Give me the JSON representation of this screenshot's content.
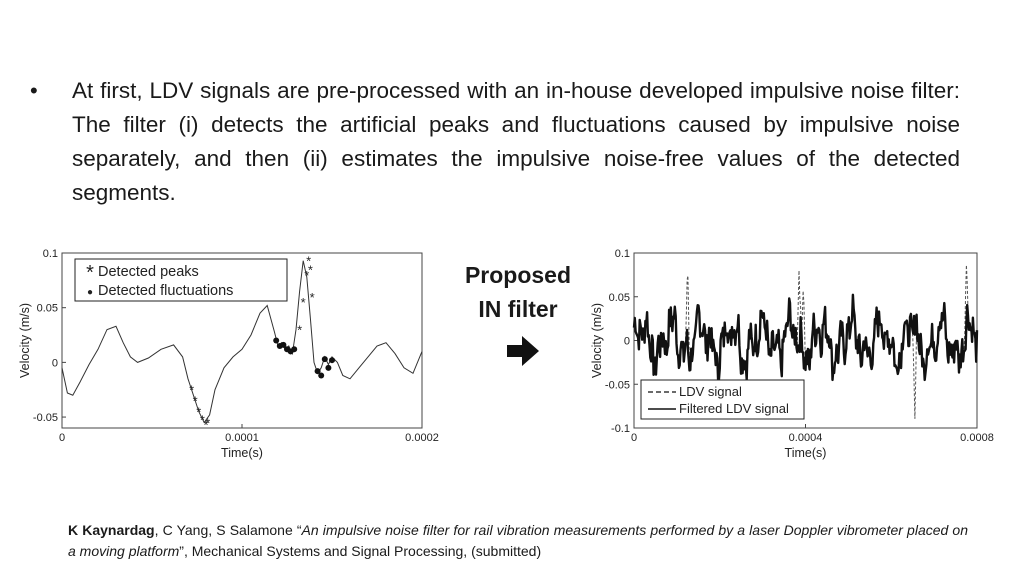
{
  "bullet": {
    "text": "At first, LDV signals are pre-processed with an in-house developed impulsive noise filter: The filter (i) detects the artificial peaks and fluctuations caused by impulsive noise separately, and then (ii) estimates the impulsive noise-free values of the detected segments."
  },
  "center": {
    "line1": "Proposed",
    "line2": "IN filter",
    "arrow_icon": "right-arrow-icon"
  },
  "citation": {
    "author_bold": "K Kaynardag",
    "authors_rest": ", C Yang, S Salamone “",
    "title_italic": "An impulsive noise filter for rail vibration measurements performed by a laser Doppler vibrometer placed on a moving platform",
    "tail": "”, Mechanical Systems and Signal Processing, (submitted)"
  },
  "chart_data": [
    {
      "type": "line",
      "xlabel": "Time(s)",
      "ylabel": "Velocity (m/s)",
      "xlim": [
        0,
        0.0002
      ],
      "ylim": [
        -0.06,
        0.1
      ],
      "x_ticks": [
        {
          "v": 0,
          "label": "0"
        },
        {
          "v": 0.0001,
          "label": "0.0001"
        },
        {
          "v": 0.0002,
          "label": "0.0002"
        }
      ],
      "y_ticks": [
        {
          "v": -0.05,
          "label": "-0.05"
        },
        {
          "v": 0,
          "label": "0"
        },
        {
          "v": 0.05,
          "label": "0.05"
        },
        {
          "v": 0.1,
          "label": "0.1"
        }
      ],
      "legend": {
        "placement": "top-left",
        "entries": [
          {
            "marker": "*",
            "label": "Detected peaks"
          },
          {
            "marker": "●",
            "label": "Detected fluctuations"
          }
        ]
      },
      "grid": false,
      "series": [
        {
          "style": "solid-thin",
          "x": [
            0,
            3e-06,
            6e-06,
            1e-05,
            1.5e-05,
            2e-05,
            2.5e-05,
            3e-05,
            3.4e-05,
            3.8e-05,
            4.2e-05,
            4.8e-05,
            5.5e-05,
            6.2e-05,
            6.7e-05,
            7e-05,
            7.3e-05,
            7.6e-05,
            7.9e-05,
            8.2e-05,
            8.5e-05,
            9e-05,
            9.5e-05,
            0.0001,
            0.000105,
            0.00011,
            0.000114,
            0.000118,
            0.00012,
            0.000122,
            0.000124,
            0.000126,
            0.000128,
            0.00013,
            0.000132,
            0.000134,
            0.000136,
            0.000138,
            0.00014,
            0.000142,
            0.000144,
            0.000146,
            0.000148,
            0.00015,
            0.000153,
            0.000156,
            0.00016,
            0.000165,
            0.00017,
            0.000175,
            0.00018,
            0.000185,
            0.00019,
            0.000195,
            0.0002
          ],
          "y": [
            -0.005,
            -0.028,
            -0.03,
            -0.018,
            -0.002,
            0.012,
            0.03,
            0.033,
            0.018,
            0.005,
            0.0,
            0.004,
            0.012,
            0.016,
            0.005,
            -0.015,
            -0.03,
            -0.045,
            -0.055,
            -0.048,
            -0.025,
            -0.005,
            0.005,
            0.012,
            0.025,
            0.045,
            0.052,
            0.028,
            0.015,
            0.018,
            0.012,
            0.015,
            0.008,
            0.03,
            0.065,
            0.093,
            0.078,
            0.04,
            0.0,
            -0.01,
            -0.005,
            0.005,
            -0.002,
            0.005,
            0.0,
            -0.012,
            -0.015,
            -0.005,
            0.005,
            0.015,
            0.018,
            0.008,
            -0.005,
            -0.01,
            0.01
          ]
        },
        {
          "style": "markers-asterisk",
          "x": [
            7.2e-05,
            7.4e-05,
            7.6e-05,
            7.8e-05,
            8e-05,
            8.1e-05,
            0.000132,
            0.000134,
            0.000136,
            0.000137,
            0.000138,
            0.000139
          ],
          "y": [
            -0.025,
            -0.035,
            -0.045,
            -0.052,
            -0.057,
            -0.055,
            0.03,
            0.055,
            0.08,
            0.093,
            0.085,
            0.06
          ]
        },
        {
          "style": "markers-dot",
          "x": [
            0.000119,
            0.000121,
            0.000123,
            0.000125,
            0.000127,
            0.000129,
            0.000142,
            0.000144,
            0.000146,
            0.000148,
            0.00015
          ],
          "y": [
            0.02,
            0.015,
            0.016,
            0.012,
            0.01,
            0.012,
            -0.008,
            -0.012,
            0.003,
            -0.005,
            0.002
          ]
        }
      ]
    },
    {
      "type": "line",
      "xlabel": "Time(s)",
      "ylabel": "Velocity (m/s)",
      "xlim": [
        0,
        0.0008
      ],
      "ylim": [
        -0.1,
        0.1
      ],
      "x_ticks": [
        {
          "v": 0,
          "label": "0"
        },
        {
          "v": 0.0004,
          "label": "0.0004"
        },
        {
          "v": 0.0008,
          "label": "0.0008"
        }
      ],
      "y_ticks": [
        {
          "v": -0.1,
          "label": "-0.1"
        },
        {
          "v": -0.05,
          "label": "-0.05"
        },
        {
          "v": 0,
          "label": "0"
        },
        {
          "v": 0.05,
          "label": "0.05"
        },
        {
          "v": 0.1,
          "label": "0.1"
        }
      ],
      "legend": {
        "placement": "bottom-left",
        "entries": [
          {
            "style": "dashed",
            "label": "LDV signal"
          },
          {
            "style": "solid",
            "label": "Filtered LDV signal"
          }
        ]
      },
      "grid": false,
      "spikes": [
        {
          "x": 0.000125,
          "y": 0.09
        },
        {
          "x": 0.000385,
          "y": 0.085
        },
        {
          "x": 0.000395,
          "y": 0.07
        },
        {
          "x": 0.000655,
          "y": -0.095
        },
        {
          "x": 0.000775,
          "y": 0.09
        }
      ]
    }
  ]
}
